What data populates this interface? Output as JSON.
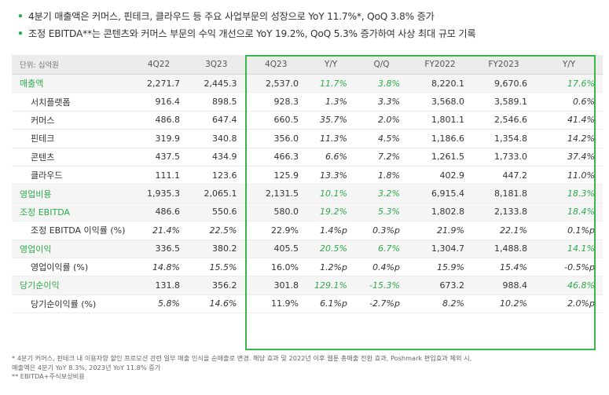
{
  "bullets": [
    "4분기 매출액은 커머스, 핀테크, 클라우드 등 주요 사업부문의 성장으로 YoY 11.7%*, QoQ 3.8% 증가",
    "조정 EBITDA**는 콘텐츠와 커머스 부문의 수익 개선으로 YoY 19.2%, QoQ 5.3% 증가하여 사상 최대 규모 기록"
  ],
  "table": {
    "unit_label": "단위: 십억원",
    "columns": [
      "4Q22",
      "3Q23",
      "4Q23",
      "Y/Y",
      "Q/Q",
      "FY2022",
      "FY2023",
      "Y/Y"
    ],
    "rows": [
      {
        "label": "매출액",
        "values": [
          "2,271.7",
          "2,445.3",
          "2,537.0",
          "11.7%",
          "3.8%",
          "8,220.1",
          "9,670.6",
          "17.6%"
        ]
      },
      {
        "label": "서치플랫폼",
        "values": [
          "916.4",
          "898.5",
          "928.3",
          "1.3%",
          "3.3%",
          "3,568.0",
          "3,589.1",
          "0.6%"
        ]
      },
      {
        "label": "커머스",
        "values": [
          "486.8",
          "647.4",
          "660.5",
          "35.7%",
          "2.0%",
          "1,801.1",
          "2,546.6",
          "41.4%"
        ]
      },
      {
        "label": "핀테크",
        "values": [
          "319.9",
          "340.8",
          "356.0",
          "11.3%",
          "4.5%",
          "1,186.6",
          "1,354.8",
          "14.2%"
        ]
      },
      {
        "label": "콘텐츠",
        "values": [
          "437.5",
          "434.9",
          "466.3",
          "6.6%",
          "7.2%",
          "1,261.5",
          "1,733.0",
          "37.4%"
        ]
      },
      {
        "label": "클라우드",
        "values": [
          "111.1",
          "123.6",
          "125.9",
          "13.3%",
          "1.8%",
          "402.9",
          "447.2",
          "11.0%"
        ]
      },
      {
        "label": "영업비용",
        "values": [
          "1,935.3",
          "2,065.1",
          "2,131.5",
          "10.1%",
          "3.2%",
          "6,915.4",
          "8,181.8",
          "18.3%"
        ]
      },
      {
        "label": "조정 EBITDA",
        "values": [
          "486.6",
          "550.6",
          "580.0",
          "19.2%",
          "5.3%",
          "1,802.8",
          "2,133.8",
          "18.4%"
        ]
      },
      {
        "label": "조정 EBITDA 이익률 (%)",
        "values": [
          "21.4%",
          "22.5%",
          "22.9%",
          "1.4%p",
          "0.3%p",
          "21.9%",
          "22.1%",
          "0.1%p"
        ]
      },
      {
        "label": "영업이익",
        "values": [
          "336.5",
          "380.2",
          "405.5",
          "20.5%",
          "6.7%",
          "1,304.7",
          "1,488.8",
          "14.1%"
        ]
      },
      {
        "label": "영업이익률 (%)",
        "values": [
          "14.8%",
          "15.5%",
          "16.0%",
          "1.2%p",
          "0.4%p",
          "15.9%",
          "15.4%",
          "-0.5%p"
        ]
      },
      {
        "label": "당기순이익",
        "values": [
          "131.8",
          "356.2",
          "301.8",
          "129.1%",
          "-15.3%",
          "673.2",
          "988.4",
          "46.8%"
        ]
      },
      {
        "label": "당기순이익률 (%)",
        "values": [
          "5.8%",
          "14.6%",
          "11.9%",
          "6.1%p",
          "-2.7%p",
          "8.2%",
          "10.2%",
          "2.0%p"
        ]
      }
    ]
  },
  "footnotes": [
    "* 4분기 커머스, 핀테크 내 이용자향 할인 프로모션 관련 일부 매출 인식을 순매출로 변경. 해당 효과 및 2022년 이후 웹툰 총매출 전환 효과, Poshmark 편입효과 제외 시,",
    "매출액은 4분기 YoY 8.3%, 2023년 YoY 11.8% 증가",
    "** EBITDA+주식보상비용"
  ],
  "colors": {
    "accent": "#2eab4a",
    "box_border": "#3cb54a"
  }
}
